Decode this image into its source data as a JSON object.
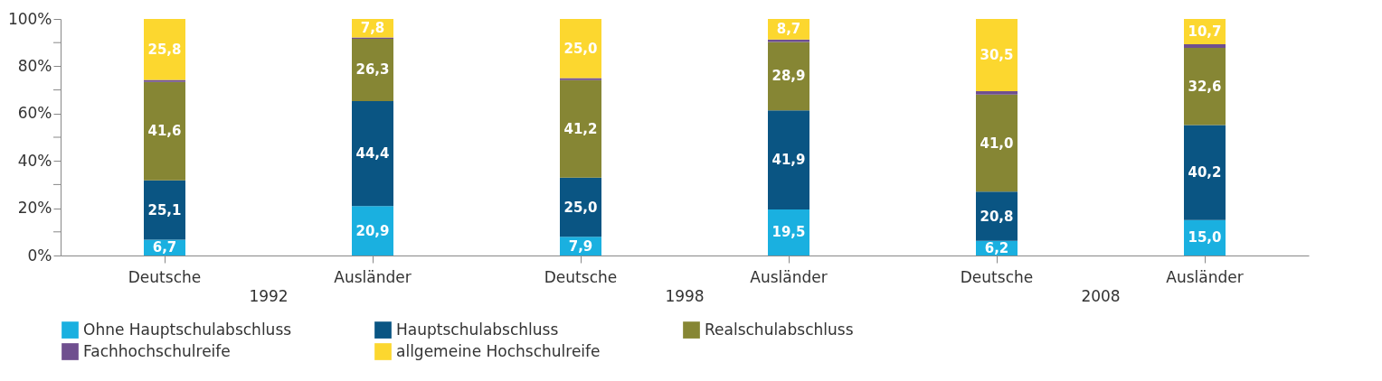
{
  "chart_data": {
    "type": "bar",
    "stacked": true,
    "categories": [
      "Deutsche",
      "Ausländer",
      "Deutsche",
      "Ausländer",
      "Deutsche",
      "Ausländer"
    ],
    "series": [
      {
        "name": "Ohne Hauptschulabschluss",
        "color": "#1ab0e0",
        "values": [
          6.7,
          20.9,
          7.9,
          19.5,
          6.2,
          15.0
        ],
        "value_labels": [
          "6,7",
          "20,9",
          "7,9",
          "19,5",
          "6,2",
          "15,0"
        ]
      },
      {
        "name": "Hauptschulabschluss",
        "color": "#0a5583",
        "values": [
          25.1,
          44.4,
          25.0,
          41.9,
          20.8,
          40.2
        ],
        "value_labels": [
          "25,1",
          "44,4",
          "25,0",
          "41,9",
          "20,8",
          "40,2"
        ]
      },
      {
        "name": "Realschulabschluss",
        "color": "#868634",
        "values": [
          41.6,
          26.3,
          41.2,
          28.9,
          41.0,
          32.6
        ],
        "value_labels": [
          "41,6",
          "26,3",
          "41,2",
          "28,9",
          "41,0",
          "32,6"
        ]
      },
      {
        "name": "Fachhochschulreife",
        "color": "#6f4f8f",
        "values": [
          0.8,
          0.6,
          0.9,
          1.0,
          1.5,
          1.5
        ]
      },
      {
        "name": "allgemeine Hochschulreife",
        "color": "#fcd72f",
        "values": [
          25.8,
          7.8,
          25.0,
          8.7,
          30.5,
          10.7
        ],
        "value_labels": [
          "25,8",
          "7,8",
          "25,0",
          "8,7",
          "30,5",
          "10,7"
        ]
      }
    ],
    "ylim": [
      0,
      100
    ],
    "yticks": [
      {
        "value": 0,
        "label": "0%"
      },
      {
        "value": 10,
        "label": null
      },
      {
        "value": 20,
        "label": "20%"
      },
      {
        "value": 30,
        "label": null
      },
      {
        "value": 40,
        "label": "40%"
      },
      {
        "value": 50,
        "label": null
      },
      {
        "value": 60,
        "label": "60%"
      },
      {
        "value": 70,
        "label": null
      },
      {
        "value": 80,
        "label": "80%"
      },
      {
        "value": 90,
        "label": null
      },
      {
        "value": 100,
        "label": "100%"
      }
    ],
    "annotations": [
      "1992",
      "1998",
      "2008"
    ],
    "grid": false,
    "legend": "bottom"
  }
}
